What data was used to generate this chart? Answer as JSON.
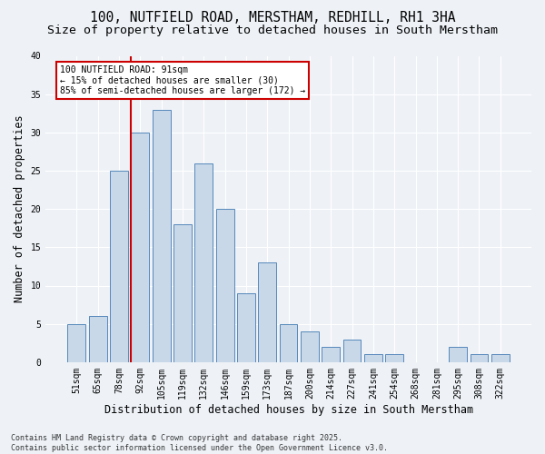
{
  "title1": "100, NUTFIELD ROAD, MERSTHAM, REDHILL, RH1 3HA",
  "title2": "Size of property relative to detached houses in South Merstham",
  "xlabel": "Distribution of detached houses by size in South Merstham",
  "ylabel": "Number of detached properties",
  "categories": [
    "51sqm",
    "65sqm",
    "78sqm",
    "92sqm",
    "105sqm",
    "119sqm",
    "132sqm",
    "146sqm",
    "159sqm",
    "173sqm",
    "187sqm",
    "200sqm",
    "214sqm",
    "227sqm",
    "241sqm",
    "254sqm",
    "268sqm",
    "281sqm",
    "295sqm",
    "308sqm",
    "322sqm"
  ],
  "values": [
    5,
    6,
    25,
    30,
    33,
    18,
    26,
    20,
    9,
    13,
    5,
    4,
    2,
    3,
    1,
    1,
    0,
    0,
    2,
    1,
    1
  ],
  "bar_color": "#c8d8e8",
  "bar_edge_color": "#5588bb",
  "vline_color": "#cc0000",
  "annotation_text": "100 NUTFIELD ROAD: 91sqm\n← 15% of detached houses are smaller (30)\n85% of semi-detached houses are larger (172) →",
  "annotation_box_color": "#ffffff",
  "annotation_box_edge": "#cc0000",
  "ylim": [
    0,
    40
  ],
  "yticks": [
    0,
    5,
    10,
    15,
    20,
    25,
    30,
    35,
    40
  ],
  "footnote": "Contains HM Land Registry data © Crown copyright and database right 2025.\nContains public sector information licensed under the Open Government Licence v3.0.",
  "bg_color": "#eef2f7",
  "title_fontsize": 10.5,
  "subtitle_fontsize": 9.5,
  "tick_fontsize": 7,
  "ylabel_fontsize": 8.5,
  "xlabel_fontsize": 8.5,
  "footnote_fontsize": 6,
  "annot_fontsize": 7
}
